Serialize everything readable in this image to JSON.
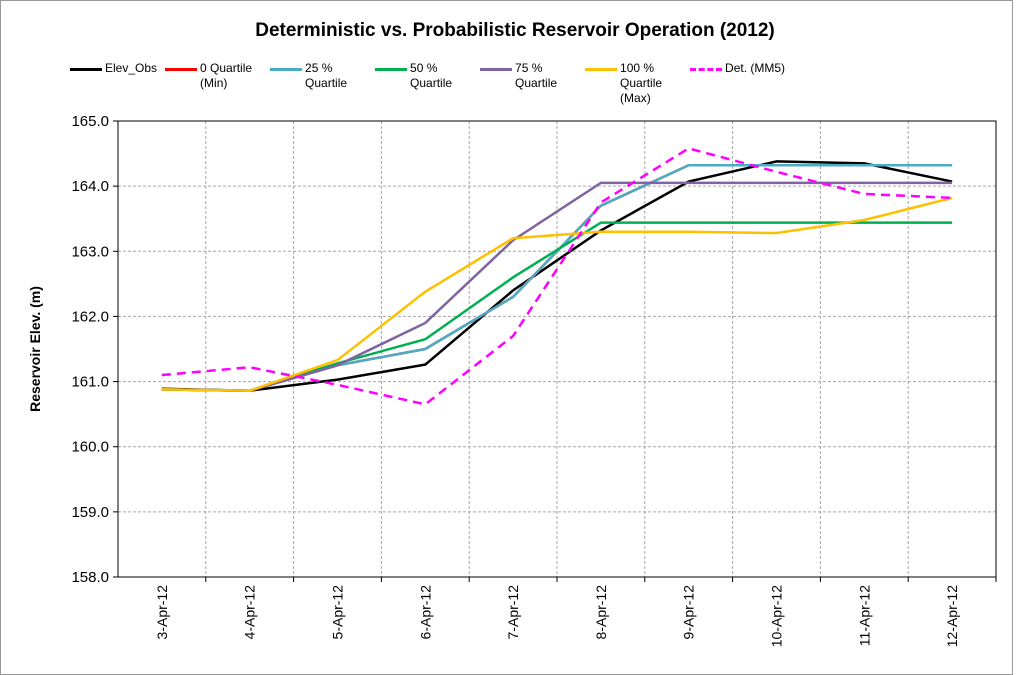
{
  "chart_data": {
    "type": "line",
    "title": "Deterministic vs. Probabilistic Reservoir Operation (2012)",
    "y_label": "Reservoir Elev. (m)",
    "categories": [
      "3-Apr-12",
      "4-Apr-12",
      "5-Apr-12",
      "6-Apr-12",
      "7-Apr-12",
      "8-Apr-12",
      "9-Apr-12",
      "10-Apr-12",
      "11-Apr-12",
      "12-Apr-12"
    ],
    "series": [
      {
        "name": "Elev_Obs",
        "color": "#000000",
        "values": [
          160.89,
          160.86,
          161.03,
          161.26,
          162.4,
          163.32,
          164.07,
          164.38,
          164.35,
          164.07
        ]
      },
      {
        "name": "0 Quartile (Min)",
        "color": "#ff0000",
        "values": [
          160.88,
          160.86,
          161.25,
          161.5,
          162.3,
          163.7,
          164.32,
          164.32,
          164.32,
          164.32
        ]
      },
      {
        "name": "25 % Quartile",
        "color": "#4bacc6",
        "values": [
          160.88,
          160.86,
          161.25,
          161.5,
          162.3,
          163.7,
          164.32,
          164.32,
          164.32,
          164.32
        ]
      },
      {
        "name": "50 % Quartile",
        "color": "#00b050",
        "values": [
          160.88,
          160.86,
          161.28,
          161.65,
          162.6,
          163.44,
          163.44,
          163.44,
          163.44,
          163.44
        ]
      },
      {
        "name": "75 % Quartile",
        "color": "#8064a2",
        "values": [
          160.88,
          160.86,
          161.25,
          161.9,
          163.17,
          164.05,
          164.05,
          164.05,
          164.05,
          164.05
        ]
      },
      {
        "name": "100 % Quartile (Max)",
        "color": "#ffc000",
        "values": [
          160.88,
          160.86,
          161.33,
          162.38,
          163.2,
          163.3,
          163.3,
          163.28,
          163.48,
          163.82
        ]
      },
      {
        "name": "Det. (MM5)",
        "color": "#ff00ff",
        "dashed": true,
        "values": [
          161.1,
          161.22,
          160.95,
          160.65,
          161.7,
          163.75,
          164.58,
          164.22,
          163.88,
          163.82
        ]
      }
    ],
    "ylim": [
      158,
      165
    ],
    "yticks": [
      {
        "value": 158,
        "label": "158.0"
      },
      {
        "value": 159,
        "label": "159.0"
      },
      {
        "value": 160,
        "label": "160.0"
      },
      {
        "value": 161,
        "label": "161.0"
      },
      {
        "value": 162,
        "label": "162.0"
      },
      {
        "value": 163,
        "label": "163.0"
      },
      {
        "value": 164,
        "label": "164.0"
      },
      {
        "value": 165,
        "label": "165.0"
      }
    ],
    "grid": true
  }
}
